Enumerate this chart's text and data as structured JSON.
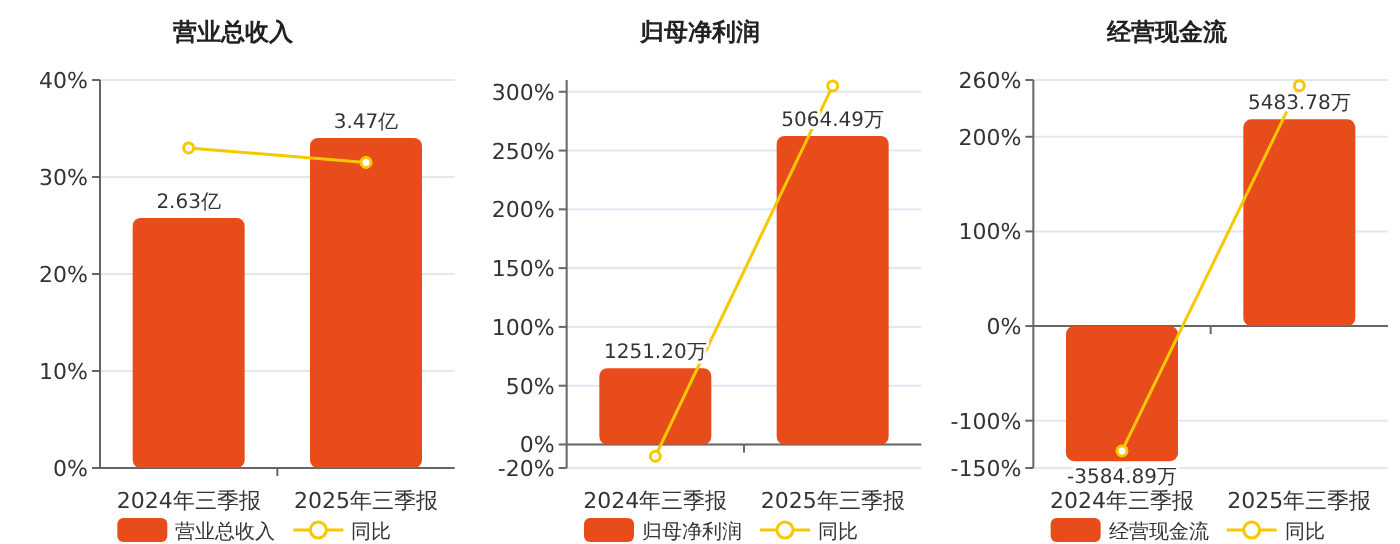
{
  "chart_data": [
    {
      "type": "bar",
      "title": "营业总收入",
      "categories": [
        "2024年三季报",
        "2025年三季报"
      ],
      "ylim": [
        0,
        40
      ],
      "yticks": [
        {
          "value": 0,
          "label": "0%"
        },
        {
          "value": 10,
          "label": "10%"
        },
        {
          "value": 20,
          "label": "20%"
        },
        {
          "value": 30,
          "label": "30%"
        },
        {
          "value": 40,
          "label": "40%"
        }
      ],
      "y2lim": [
        0,
        4.08
      ],
      "grid": "y",
      "legend": "bottom",
      "series": [
        {
          "name": "营业总收入",
          "axis": "y2",
          "color": "#e84c1a",
          "values": [
            2.63,
            3.47
          ],
          "value_labels": [
            "2.63亿",
            "3.47亿"
          ]
        },
        {
          "name": "同比",
          "type": "line",
          "color": "#f5c800",
          "marker": "circle",
          "values": [
            33,
            31.5
          ]
        }
      ]
    },
    {
      "type": "bar",
      "title": "归母净利润",
      "categories": [
        "2024年三季报",
        "2025年三季报"
      ],
      "ylim": [
        -20,
        310
      ],
      "yticks": [
        {
          "value": -20,
          "label": "-20%"
        },
        {
          "value": 0,
          "label": "0%"
        },
        {
          "value": 50,
          "label": "50%"
        },
        {
          "value": 100,
          "label": "100%"
        },
        {
          "value": 150,
          "label": "150%"
        },
        {
          "value": 200,
          "label": "200%"
        },
        {
          "value": 250,
          "label": "250%"
        },
        {
          "value": 300,
          "label": "300%"
        }
      ],
      "y2lim": [
        -386,
        5983
      ],
      "grid": "y",
      "legend": "bottom",
      "series": [
        {
          "name": "归母净利润",
          "axis": "y2",
          "color": "#e84c1a",
          "values": [
            1251.2,
            5064.49
          ],
          "value_labels": [
            "1251.20万",
            "5064.49万"
          ]
        },
        {
          "name": "同比",
          "type": "line",
          "color": "#f5c800",
          "marker": "circle",
          "values": [
            -10,
            305
          ]
        }
      ]
    },
    {
      "type": "bar",
      "title": "经营现金流",
      "categories": [
        "2024年三季报",
        "2025年三季报"
      ],
      "ylim": [
        -150,
        260
      ],
      "yticks": [
        {
          "value": -150,
          "label": "-150%"
        },
        {
          "value": -100,
          "label": "-100%"
        },
        {
          "value": 0,
          "label": "0%"
        },
        {
          "value": 100,
          "label": "100%"
        },
        {
          "value": 200,
          "label": "200%"
        },
        {
          "value": 260,
          "label": "260%"
        }
      ],
      "y2lim": [
        -3765,
        6526
      ],
      "grid": "y",
      "legend": "bottom",
      "series": [
        {
          "name": "经营现金流",
          "axis": "y2",
          "color": "#e84c1a",
          "values": [
            -3584.89,
            5483.78
          ],
          "value_labels": [
            "-3584.89万",
            "5483.78万"
          ]
        },
        {
          "name": "同比",
          "type": "line",
          "color": "#f5c800",
          "marker": "circle",
          "values": [
            -132,
            254
          ]
        }
      ]
    }
  ]
}
